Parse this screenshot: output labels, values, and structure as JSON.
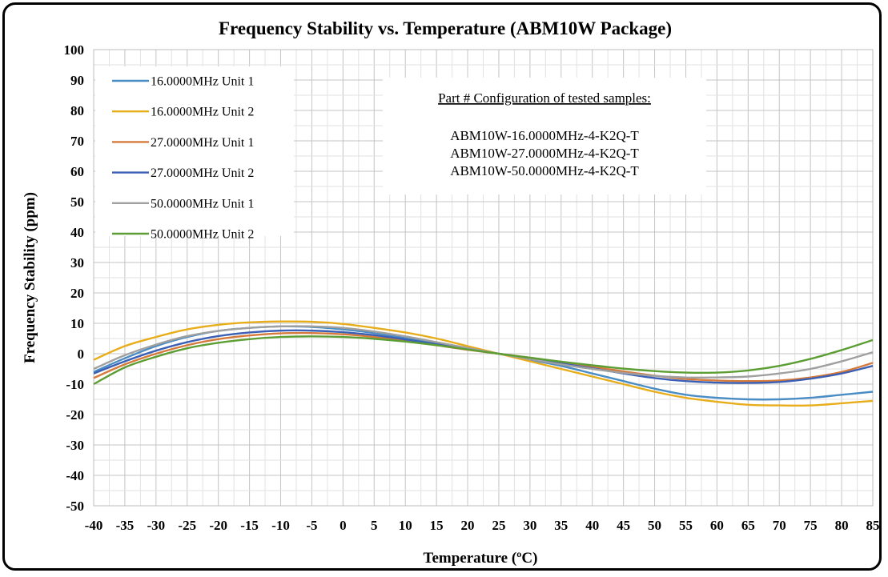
{
  "chart_data": {
    "type": "line",
    "title": "Frequency Stability vs. Temperature (ABM10W Package)",
    "xlabel": "Temperature (ºC)",
    "ylabel": "Frequency Stability (ppm)",
    "xlim": [
      -40,
      85
    ],
    "ylim": [
      -50,
      100
    ],
    "xticks": [
      -40,
      -35,
      -30,
      -25,
      -20,
      -15,
      -10,
      -5,
      0,
      5,
      10,
      15,
      20,
      25,
      30,
      35,
      40,
      45,
      50,
      55,
      60,
      65,
      70,
      75,
      80,
      85
    ],
    "yticks": [
      -50,
      -40,
      -30,
      -20,
      -10,
      0,
      10,
      20,
      30,
      40,
      50,
      60,
      70,
      80,
      90,
      100
    ],
    "grid": "major and minor",
    "legend_position": "top-left",
    "annotation": {
      "heading": "Part # Configuration of tested samples:",
      "lines": [
        "ABM10W-16.0000MHz-4-K2Q-T",
        "ABM10W-27.0000MHz-4-K2Q-T",
        "ABM10W-50.0000MHz-4-K2Q-T"
      ]
    },
    "x": [
      -40,
      -35,
      -30,
      -25,
      -20,
      -15,
      -10,
      -5,
      0,
      5,
      10,
      15,
      20,
      25,
      30,
      35,
      40,
      45,
      50,
      55,
      60,
      65,
      70,
      75,
      80,
      85
    ],
    "series": [
      {
        "name": "16.0000MHz Unit 1",
        "color": "#4a8cc4",
        "values": [
          -6,
          -1.5,
          2.5,
          5.5,
          7.5,
          8.5,
          9,
          8.8,
          8,
          6.8,
          5.2,
          3.5,
          1.8,
          0,
          -2,
          -4,
          -6.5,
          -9,
          -11.5,
          -13.5,
          -14.5,
          -15,
          -15,
          -14.5,
          -13.5,
          -12.5
        ]
      },
      {
        "name": "16.0000MHz Unit 2",
        "color": "#e8ad1a",
        "values": [
          -2,
          2.5,
          5.5,
          8,
          9.5,
          10.3,
          10.6,
          10.5,
          9.8,
          8.5,
          7,
          5,
          2.5,
          0,
          -2.5,
          -5,
          -7.5,
          -10,
          -12.5,
          -14.5,
          -15.8,
          -16.8,
          -17,
          -17,
          -16.3,
          -15.5
        ]
      },
      {
        "name": "27.0000MHz Unit 1",
        "color": "#d67a3c",
        "values": [
          -8,
          -3.5,
          0,
          2.8,
          4.8,
          6,
          6.7,
          6.8,
          6.4,
          5.5,
          4.3,
          2.8,
          1.3,
          0,
          -1.3,
          -2.8,
          -4.3,
          -5.8,
          -7.2,
          -8.3,
          -8.8,
          -9,
          -8.8,
          -7.8,
          -6,
          -3
        ]
      },
      {
        "name": "27.0000MHz Unit 2",
        "color": "#3a5fb5",
        "values": [
          -6.5,
          -2.5,
          1,
          3.8,
          5.8,
          7,
          7.6,
          7.6,
          7.1,
          6.1,
          4.7,
          3.1,
          1.5,
          0,
          -1.5,
          -3.2,
          -4.8,
          -6.5,
          -8,
          -9,
          -9.5,
          -9.6,
          -9.3,
          -8.2,
          -6.5,
          -4
        ]
      },
      {
        "name": "50.0000MHz Unit 1",
        "color": "#a0a0a0",
        "values": [
          -5,
          -0.5,
          3,
          5.8,
          7.5,
          8.5,
          9,
          9,
          8.5,
          7.3,
          5.7,
          3.8,
          1.9,
          0,
          -1.8,
          -3.5,
          -5,
          -6.3,
          -7.3,
          -7.8,
          -7.8,
          -7.5,
          -6.5,
          -5,
          -2.5,
          0.5
        ]
      },
      {
        "name": "50.0000MHz Unit 2",
        "color": "#5c9e34",
        "values": [
          -10,
          -4.5,
          -1,
          1.8,
          3.6,
          4.8,
          5.5,
          5.7,
          5.5,
          4.9,
          4,
          2.8,
          1.4,
          0,
          -1.3,
          -2.6,
          -3.8,
          -4.9,
          -5.7,
          -6.2,
          -6.2,
          -5.5,
          -4,
          -1.7,
          1.2,
          4.5
        ]
      }
    ]
  }
}
